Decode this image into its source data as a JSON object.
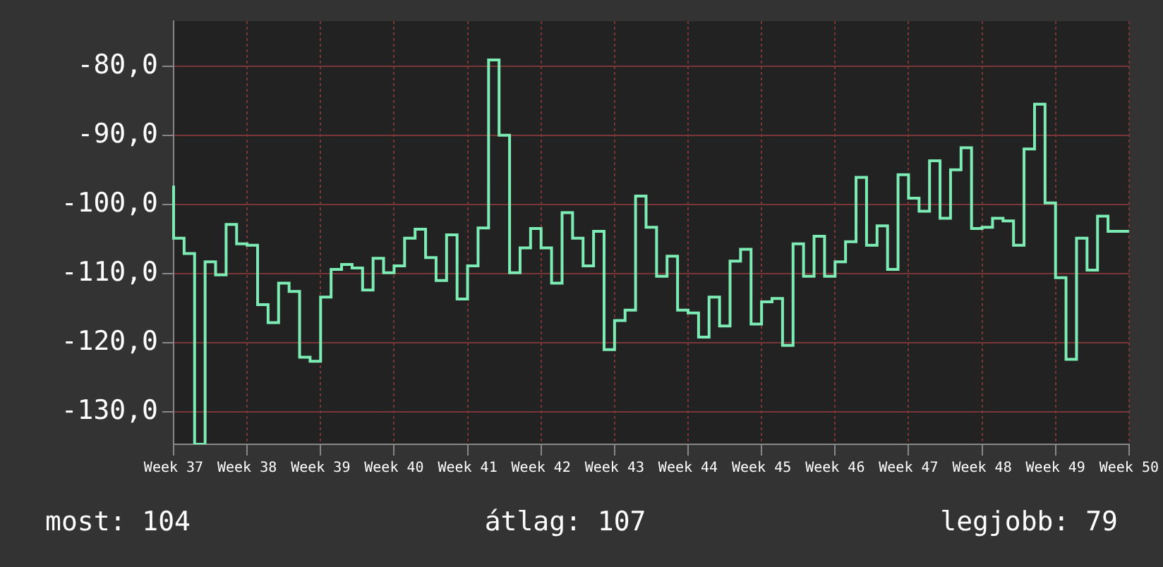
{
  "chart_data": {
    "type": "step",
    "categories": [
      "Week 37",
      null,
      null,
      null,
      null,
      null,
      null,
      "Week 38",
      null,
      null,
      null,
      null,
      null,
      null,
      "Week 39",
      null,
      null,
      null,
      null,
      null,
      null,
      "Week 40",
      null,
      null,
      null,
      null,
      null,
      null,
      "Week 41",
      null,
      null,
      null,
      null,
      null,
      null,
      "Week 42",
      null,
      null,
      null,
      null,
      null,
      null,
      "Week 43",
      null,
      null,
      null,
      null,
      null,
      null,
      "Week 44",
      null,
      null,
      null,
      null,
      null,
      null,
      "Week 45",
      null,
      null,
      null,
      null,
      null,
      null,
      "Week 46",
      null,
      null,
      null,
      null,
      null,
      null,
      "Week 47",
      null,
      null,
      null,
      null,
      null,
      null,
      "Week 48",
      null,
      null,
      null,
      null,
      null,
      null,
      "Week 49",
      null,
      null,
      null,
      null,
      null,
      null,
      "Week 50"
    ],
    "series": [
      {
        "color": "#7cecb4",
        "values": [
          -97.3,
          -104.9,
          -107.1,
          -134.7,
          -108.3,
          -110.2,
          -102.9,
          -105.7,
          -105.9,
          -114.5,
          -117.1,
          -111.4,
          -112.6,
          -122.1,
          -122.7,
          -113.4,
          -109.4,
          -108.7,
          -109.2,
          -112.4,
          -107.8,
          -109.9,
          -108.9,
          -104.9,
          -103.6,
          -107.7,
          -111.0,
          -104.4,
          -113.7,
          -108.9,
          -103.4,
          -79.1,
          -90.0,
          -109.9,
          -106.3,
          -103.5,
          -106.3,
          -111.4,
          -101.2,
          -104.9,
          -108.9,
          -103.9,
          -121.0,
          -116.8,
          -115.3,
          -98.8,
          -103.3,
          -110.4,
          -107.5,
          -115.3,
          -115.7,
          -119.2,
          -113.4,
          -117.6,
          -108.2,
          -106.5,
          -117.3,
          -114.1,
          -113.6,
          -120.4,
          -105.7,
          -110.4,
          -104.6,
          -110.4,
          -108.3,
          -105.4,
          -96.1,
          -105.9,
          -103.1,
          -109.4,
          -95.7,
          -99.1,
          -101.0,
          -93.7,
          -102.0,
          -95.0,
          -91.8,
          -103.5,
          -103.3,
          -102.0,
          -102.4,
          -105.9,
          -92.0,
          -85.5,
          -99.8,
          -110.6,
          -122.4,
          -104.9,
          -109.5,
          -101.7,
          -103.9,
          -103.9
        ]
      }
    ],
    "ylim": [
      -134.7,
      -73.5
    ],
    "yticks": [
      {
        "value": -130,
        "label": "-130,0"
      },
      {
        "value": -120,
        "label": "-120,0"
      },
      {
        "value": -110,
        "label": "-110,0"
      },
      {
        "value": -100,
        "label": "-100,0"
      },
      {
        "value": -90,
        "label": "-90,0"
      },
      {
        "value": -80,
        "label": "-80,0"
      }
    ],
    "grid": true,
    "annotations": [
      "most: 104",
      "átlag: 107",
      "legjobb: 79"
    ]
  }
}
